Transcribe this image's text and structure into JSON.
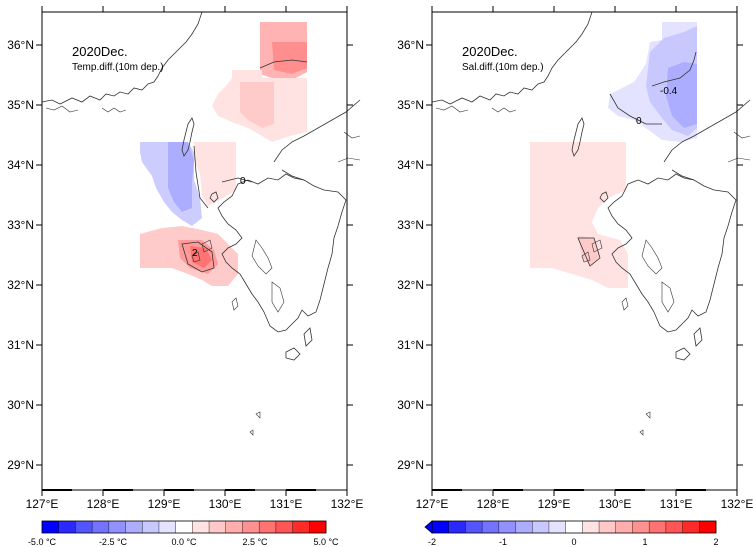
{
  "panels": [
    {
      "title": "2020Dec.",
      "subtitle": "Temp.diff.(10m dep.)",
      "contour_labels": [
        "0",
        "2"
      ],
      "colorbar": {
        "labels": [
          "-5.0 °C",
          "-2.5 °C",
          "0.0 °C",
          "2.5 °C",
          "5.0 °C"
        ],
        "colors": [
          "#0000ff",
          "#2a2aff",
          "#5555ff",
          "#7373ff",
          "#9191ff",
          "#adadff",
          "#c8c8ff",
          "#e3e3ff",
          "#ffffff",
          "#ffe3e3",
          "#ffc8c8",
          "#ffadad",
          "#ff9191",
          "#ff7373",
          "#ff5555",
          "#ff2a2a",
          "#ff0000"
        ]
      }
    },
    {
      "title": "2020Dec.",
      "subtitle": "Sal.diff.(10m dep.)",
      "contour_labels": [
        "-0.4",
        "0"
      ],
      "colorbar": {
        "labels": [
          "-2",
          "-1",
          "0",
          "1",
          "2"
        ],
        "colors": [
          "#0000ff",
          "#2a2aff",
          "#5555ff",
          "#7373ff",
          "#9191ff",
          "#adadff",
          "#c8c8ff",
          "#e3e3ff",
          "#ffffff",
          "#ffe3e3",
          "#ffc8c8",
          "#ffadad",
          "#ff9191",
          "#ff7373",
          "#ff5555",
          "#ff2a2a",
          "#ff0000"
        ]
      }
    }
  ],
  "axes": {
    "lon_labels": [
      "127°E",
      "128°E",
      "129°E",
      "130°E",
      "131°E",
      "132°E"
    ],
    "lat_labels": [
      "36°N",
      "35°N",
      "34°N",
      "33°N",
      "32°N",
      "31°N",
      "30°N",
      "29°N"
    ]
  },
  "colors": {
    "pos_light": "#ffe6e6",
    "pos_mid": "#ffcccc",
    "pos_strong": "#ff9999",
    "neg_light": "#e6e6ff",
    "neg_mid": "#ccccff",
    "neg_strong": "#aaaaff"
  }
}
